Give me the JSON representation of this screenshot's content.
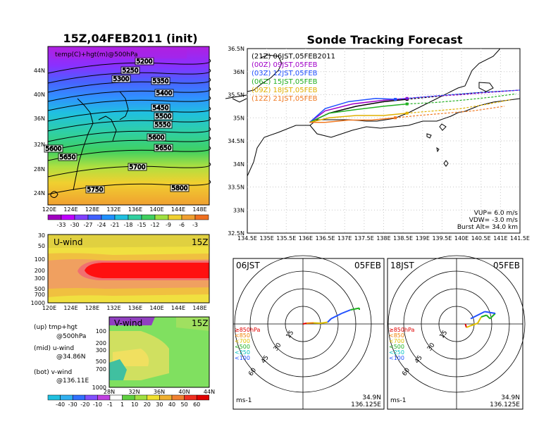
{
  "left_title": "15Z,04FEB2011 (init)",
  "main_title": "Sonde Tracking Forecast",
  "top_map": {
    "label": "temp(C)+hgt(m)@500hPa",
    "y_ticks": [
      "44N",
      "40N",
      "36N",
      "32N",
      "28N",
      "24N"
    ],
    "x_ticks": [
      "120E",
      "124E",
      "128E",
      "132E",
      "136E",
      "140E",
      "144E",
      "148E"
    ],
    "contours": [
      "5200",
      "5250",
      "5300",
      "5350",
      "5400",
      "5450",
      "5500",
      "5550",
      "5600",
      "5650",
      "5700",
      "5750",
      "5800",
      "5600",
      "5650"
    ],
    "colorbar_ticks": [
      "-33",
      "-30",
      "-27",
      "-24",
      "-21",
      "-18",
      "-15",
      "-12",
      "-9",
      "-6",
      "-3"
    ]
  },
  "u_panel": {
    "label": "U-wind",
    "time": "15Z",
    "y_ticks": [
      "30",
      "50",
      "100",
      "200",
      "300",
      "500",
      "700",
      "1000"
    ],
    "x_ticks": [
      "120E",
      "124E",
      "128E",
      "132E",
      "136E",
      "140E",
      "144E",
      "148E"
    ]
  },
  "v_panel": {
    "label": "V-wind",
    "time": "15Z",
    "y_ticks": [
      "100",
      "200",
      "300",
      "500",
      "700",
      "1000"
    ],
    "x_ticks": [
      "28N",
      "32N",
      "36N",
      "40N",
      "44N"
    ]
  },
  "notes": [
    {
      "a": "(up) tmp+hgt",
      "b": "@500hPa"
    },
    {
      "a": "(mid) u-wind",
      "b": "@34.86N"
    },
    {
      "a": "(bot) v-wind",
      "b": "@136.11E"
    }
  ],
  "bottom_colorbar_ticks": [
    "-40",
    "-30",
    "-20",
    "-10",
    "-1",
    "1",
    "10",
    "20",
    "30",
    "40",
    "50",
    "60"
  ],
  "track_map": {
    "y_ticks": [
      "36.5N",
      "36N",
      "35.5N",
      "35N",
      "34.5N",
      "34N",
      "33.5N",
      "33N",
      "32.5N"
    ],
    "x_ticks": [
      "134.5E",
      "135E",
      "135.5E",
      "136E",
      "136.5E",
      "137E",
      "137.5E",
      "138E",
      "138.5E",
      "139E",
      "139.5E",
      "140E",
      "140.5E",
      "141E",
      "141.5E"
    ],
    "legend": [
      {
        "text": "(21Z)  06JST,05FEB2011",
        "color": "#000000"
      },
      {
        "text": "(00Z)  09JST,05FEB",
        "color": "#a000c8"
      },
      {
        "text": "(03Z)  12JST,05FEB",
        "color": "#2050ff"
      },
      {
        "text": "(06Z)  15JST,05FEB",
        "color": "#20b020"
      },
      {
        "text": "(09Z)  18JST,05FEB",
        "color": "#e0b000"
      },
      {
        "text": "(12Z)  21JST,05FEB",
        "color": "#f07820"
      }
    ],
    "params": [
      "VUP=  6.0  m/s",
      "VDW= -3.0  m/s",
      "Burst Alt= 34.0  km"
    ]
  },
  "polar_panels": [
    {
      "time": "06JST",
      "date": "05FEB",
      "lat": "34.9N",
      "lon": "136.125E",
      "unit": "ms-1"
    },
    {
      "time": "18JST",
      "date": "05FEB",
      "lat": "34.9N",
      "lon": "136.125E",
      "unit": "ms-1"
    }
  ],
  "polar_legend": [
    {
      "text": "≥850hPa",
      "color": "#e00000"
    },
    {
      "text": "<850",
      "color": "#f08000"
    },
    {
      "text": "<700",
      "color": "#e0c000"
    },
    {
      "text": "<500",
      "color": "#20b020"
    },
    {
      "text": "<250",
      "color": "#00c0c0"
    },
    {
      "text": "<100",
      "color": "#2050ff"
    }
  ],
  "ring_labels": [
    "15",
    "30",
    "45",
    "60"
  ],
  "chart_data": [
    {
      "type": "heatmap",
      "title": "15Z,04FEB2011 (init)",
      "variable": "temp(C)+hgt(m)@500hPa",
      "xlim": [
        "120E",
        "150E"
      ],
      "ylim": [
        "22N",
        "47N"
      ],
      "colorbar": [
        -33,
        -30,
        -27,
        -24,
        -21,
        -18,
        -15,
        -12,
        -9,
        -6,
        -3
      ],
      "height_contours_m": [
        5200,
        5250,
        5300,
        5350,
        5400,
        5450,
        5500,
        5550,
        5600,
        5650,
        5700,
        5750,
        5800
      ]
    },
    {
      "type": "heatmap",
      "title": "U-wind",
      "x": [
        "120E",
        "124E",
        "128E",
        "132E",
        "136E",
        "140E",
        "144E",
        "148E"
      ],
      "y_pressure_hPa": [
        30,
        50,
        100,
        200,
        300,
        500,
        700,
        1000
      ]
    },
    {
      "type": "heatmap",
      "title": "V-wind",
      "x": [
        "28N",
        "32N",
        "36N",
        "40N",
        "44N"
      ],
      "y_pressure_hPa": [
        100,
        200,
        300,
        500,
        700,
        1000
      ],
      "colorbar": [
        -40,
        -30,
        -20,
        -10,
        -1,
        1,
        10,
        20,
        30,
        40,
        50,
        60
      ]
    },
    {
      "type": "line",
      "title": "Sonde Tracking Forecast",
      "xlim": [
        134.5,
        141.5
      ],
      "ylim": [
        32.5,
        36.5
      ],
      "series": [
        {
          "name": "(21Z) 06JST,05FEB2011",
          "lon": [
            136.1,
            136.6,
            137.3,
            138.0,
            138.6,
            139.2,
            139.8,
            140.5,
            141.5
          ],
          "lat": [
            34.9,
            35.1,
            35.25,
            35.35,
            35.4,
            35.45,
            35.5,
            35.55,
            35.6
          ]
        },
        {
          "name": "(00Z) 09JST,05FEB",
          "lon": [
            136.1,
            136.5,
            137.2,
            138.0,
            138.6,
            139.3,
            140.0,
            140.7,
            141.5
          ],
          "lat": [
            34.9,
            35.15,
            35.3,
            35.38,
            35.42,
            35.47,
            35.5,
            35.55,
            35.6
          ]
        },
        {
          "name": "(03Z) 12JST,05FEB",
          "lon": [
            136.1,
            136.5,
            137.1,
            137.8,
            138.3,
            139.0,
            139.7,
            140.5,
            141.5
          ],
          "lat": [
            34.9,
            35.2,
            35.35,
            35.42,
            35.4,
            35.45,
            35.5,
            35.55,
            35.6
          ]
        },
        {
          "name": "(06Z) 15JST,05FEB",
          "lon": [
            136.1,
            136.6,
            137.3,
            138.0,
            138.6,
            139.3,
            140.0,
            140.8,
            141.4
          ],
          "lat": [
            34.9,
            35.1,
            35.18,
            35.25,
            35.3,
            35.33,
            35.38,
            35.45,
            35.52
          ]
        },
        {
          "name": "(09Z) 18JST,05FEB",
          "lon": [
            136.1,
            136.6,
            137.3,
            138.0,
            138.6,
            139.3,
            140.0,
            140.7,
            141.3
          ],
          "lat": [
            34.9,
            35.0,
            35.05,
            35.05,
            35.1,
            35.15,
            35.2,
            35.3,
            35.4
          ]
        },
        {
          "name": "(12Z) 21JST,05FEB",
          "lon": [
            136.1,
            136.5,
            137.1,
            137.7,
            138.3,
            138.9,
            139.6,
            140.3,
            141.1
          ],
          "lat": [
            34.9,
            34.9,
            34.95,
            34.95,
            35.0,
            35.05,
            35.1,
            35.15,
            35.25
          ]
        }
      ]
    }
  ]
}
